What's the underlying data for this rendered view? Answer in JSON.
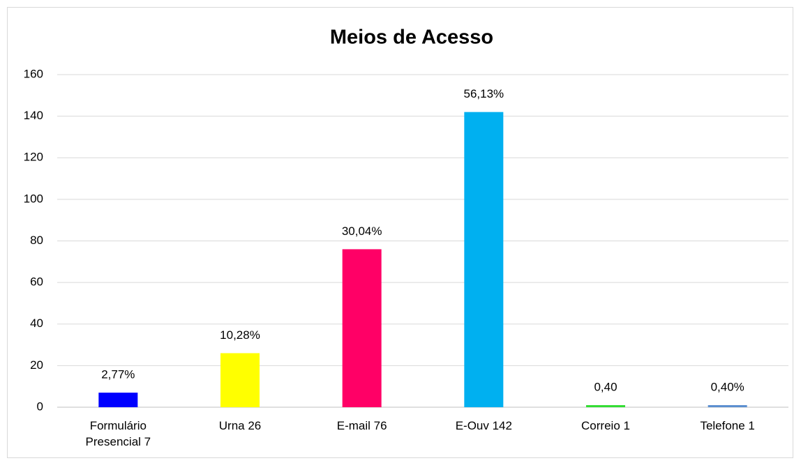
{
  "chart_data": {
    "type": "bar",
    "title": "Meios de Acesso",
    "categories": [
      "Formulário Presencial 7",
      "Urna 26",
      "E-mail 76",
      "E-Ouv 142",
      "Correio 1",
      "Telefone 1"
    ],
    "values": [
      7,
      26,
      76,
      142,
      1,
      1
    ],
    "percent_labels": [
      "2,77%",
      "10,28%",
      "30,04%",
      "56,13%",
      "0,40",
      "0,40%"
    ],
    "colors": [
      "#0000ff",
      "#ffff00",
      "#ff0066",
      "#00b0f0",
      "#33dd33",
      "#5b8fd0"
    ],
    "ylim": [
      0,
      160
    ],
    "yticks": [
      0,
      20,
      40,
      60,
      80,
      100,
      120,
      140,
      160
    ],
    "grid": true
  }
}
